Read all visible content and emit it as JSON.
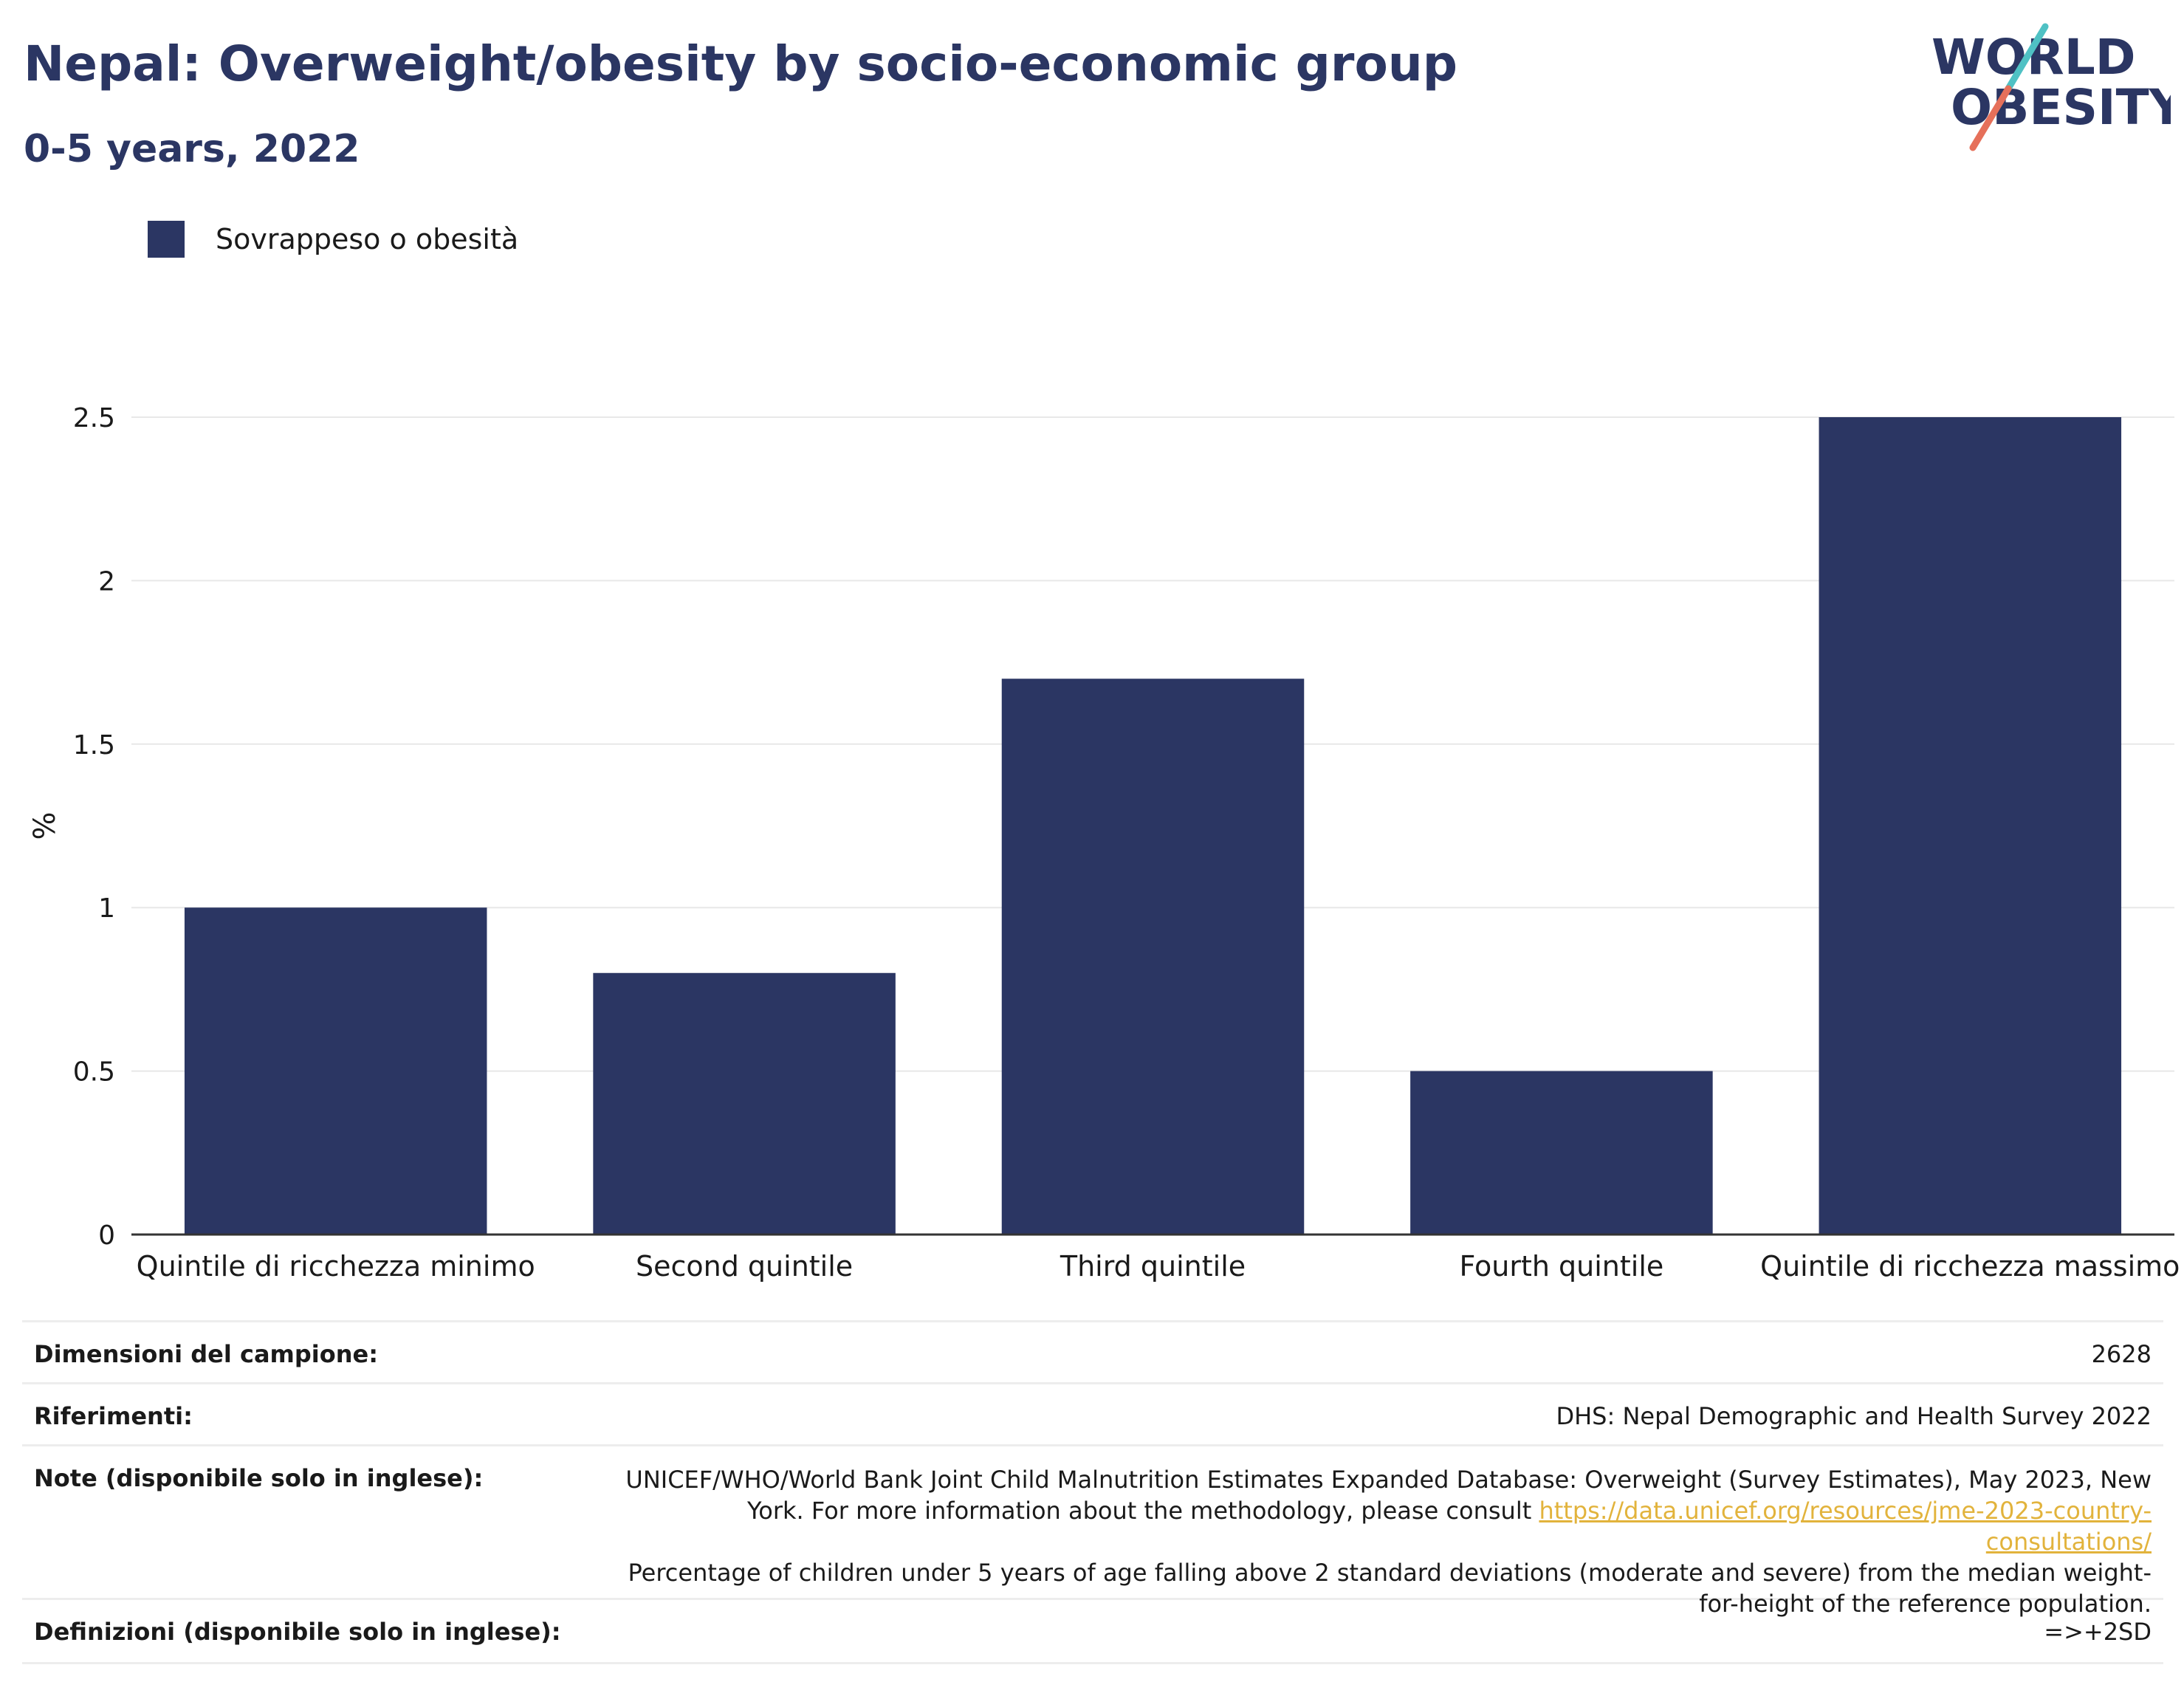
{
  "header": {
    "title": "Nepal: Overweight/obesity by socio-economic group",
    "subtitle": "0-5 years, 2022"
  },
  "logo": {
    "line1": "WORLD",
    "line2": "OBESITY",
    "text_color": "#2b3663",
    "slash_color_top": "#4fc1c4",
    "slash_color_bottom": "#e6705a"
  },
  "colors": {
    "bar": "#2b3663",
    "grid": "#e8e8e8",
    "axis": "#333333",
    "link": "#e2b33c"
  },
  "chart_data": {
    "type": "bar",
    "categories": [
      "Quintile di ricchezza minimo",
      "Second quintile",
      "Third quintile",
      "Fourth quintile",
      "Quintile di ricchezza massimo"
    ],
    "series": [
      {
        "name": "Sovrappeso o obesità",
        "values": [
          1.0,
          0.8,
          1.7,
          0.5,
          2.5
        ]
      }
    ],
    "title": "Nepal: Overweight/obesity by socio-economic group",
    "subtitle": "0-5 years, 2022",
    "xlabel": "",
    "ylabel": "%",
    "ylim": [
      0,
      2.5
    ],
    "yticks": [
      0,
      0.5,
      1,
      1.5,
      2,
      2.5
    ],
    "ytick_labels": [
      "0",
      "0.5",
      "1",
      "1.5",
      "2",
      "2.5"
    ],
    "grid": true,
    "legend": "top-left"
  },
  "info_table": {
    "sample_size_label": "Dimensioni del campione:",
    "sample_size_value": "2628",
    "references_label": "Riferimenti:",
    "references_value": "DHS: Nepal Demographic and Health Survey 2022",
    "notes_label": "Note (disponibile solo in inglese):",
    "notes_line1": "UNICEF/WHO/World Bank Joint Child Malnutrition Estimates Expanded Database: Overweight (Survey Estimates), May 2023, New York. For more information about the methodology, please consult",
    "notes_link": "https://data.unicef.org/resources/jme-2023-country-consultations/",
    "notes_line2": "Percentage of children under 5 years of age falling above 2 standard deviations (moderate and severe) from the median weight-for-height of the reference population.",
    "definitions_label": "Definizioni (disponibile solo in inglese):",
    "definitions_value": "=>+2SD"
  }
}
